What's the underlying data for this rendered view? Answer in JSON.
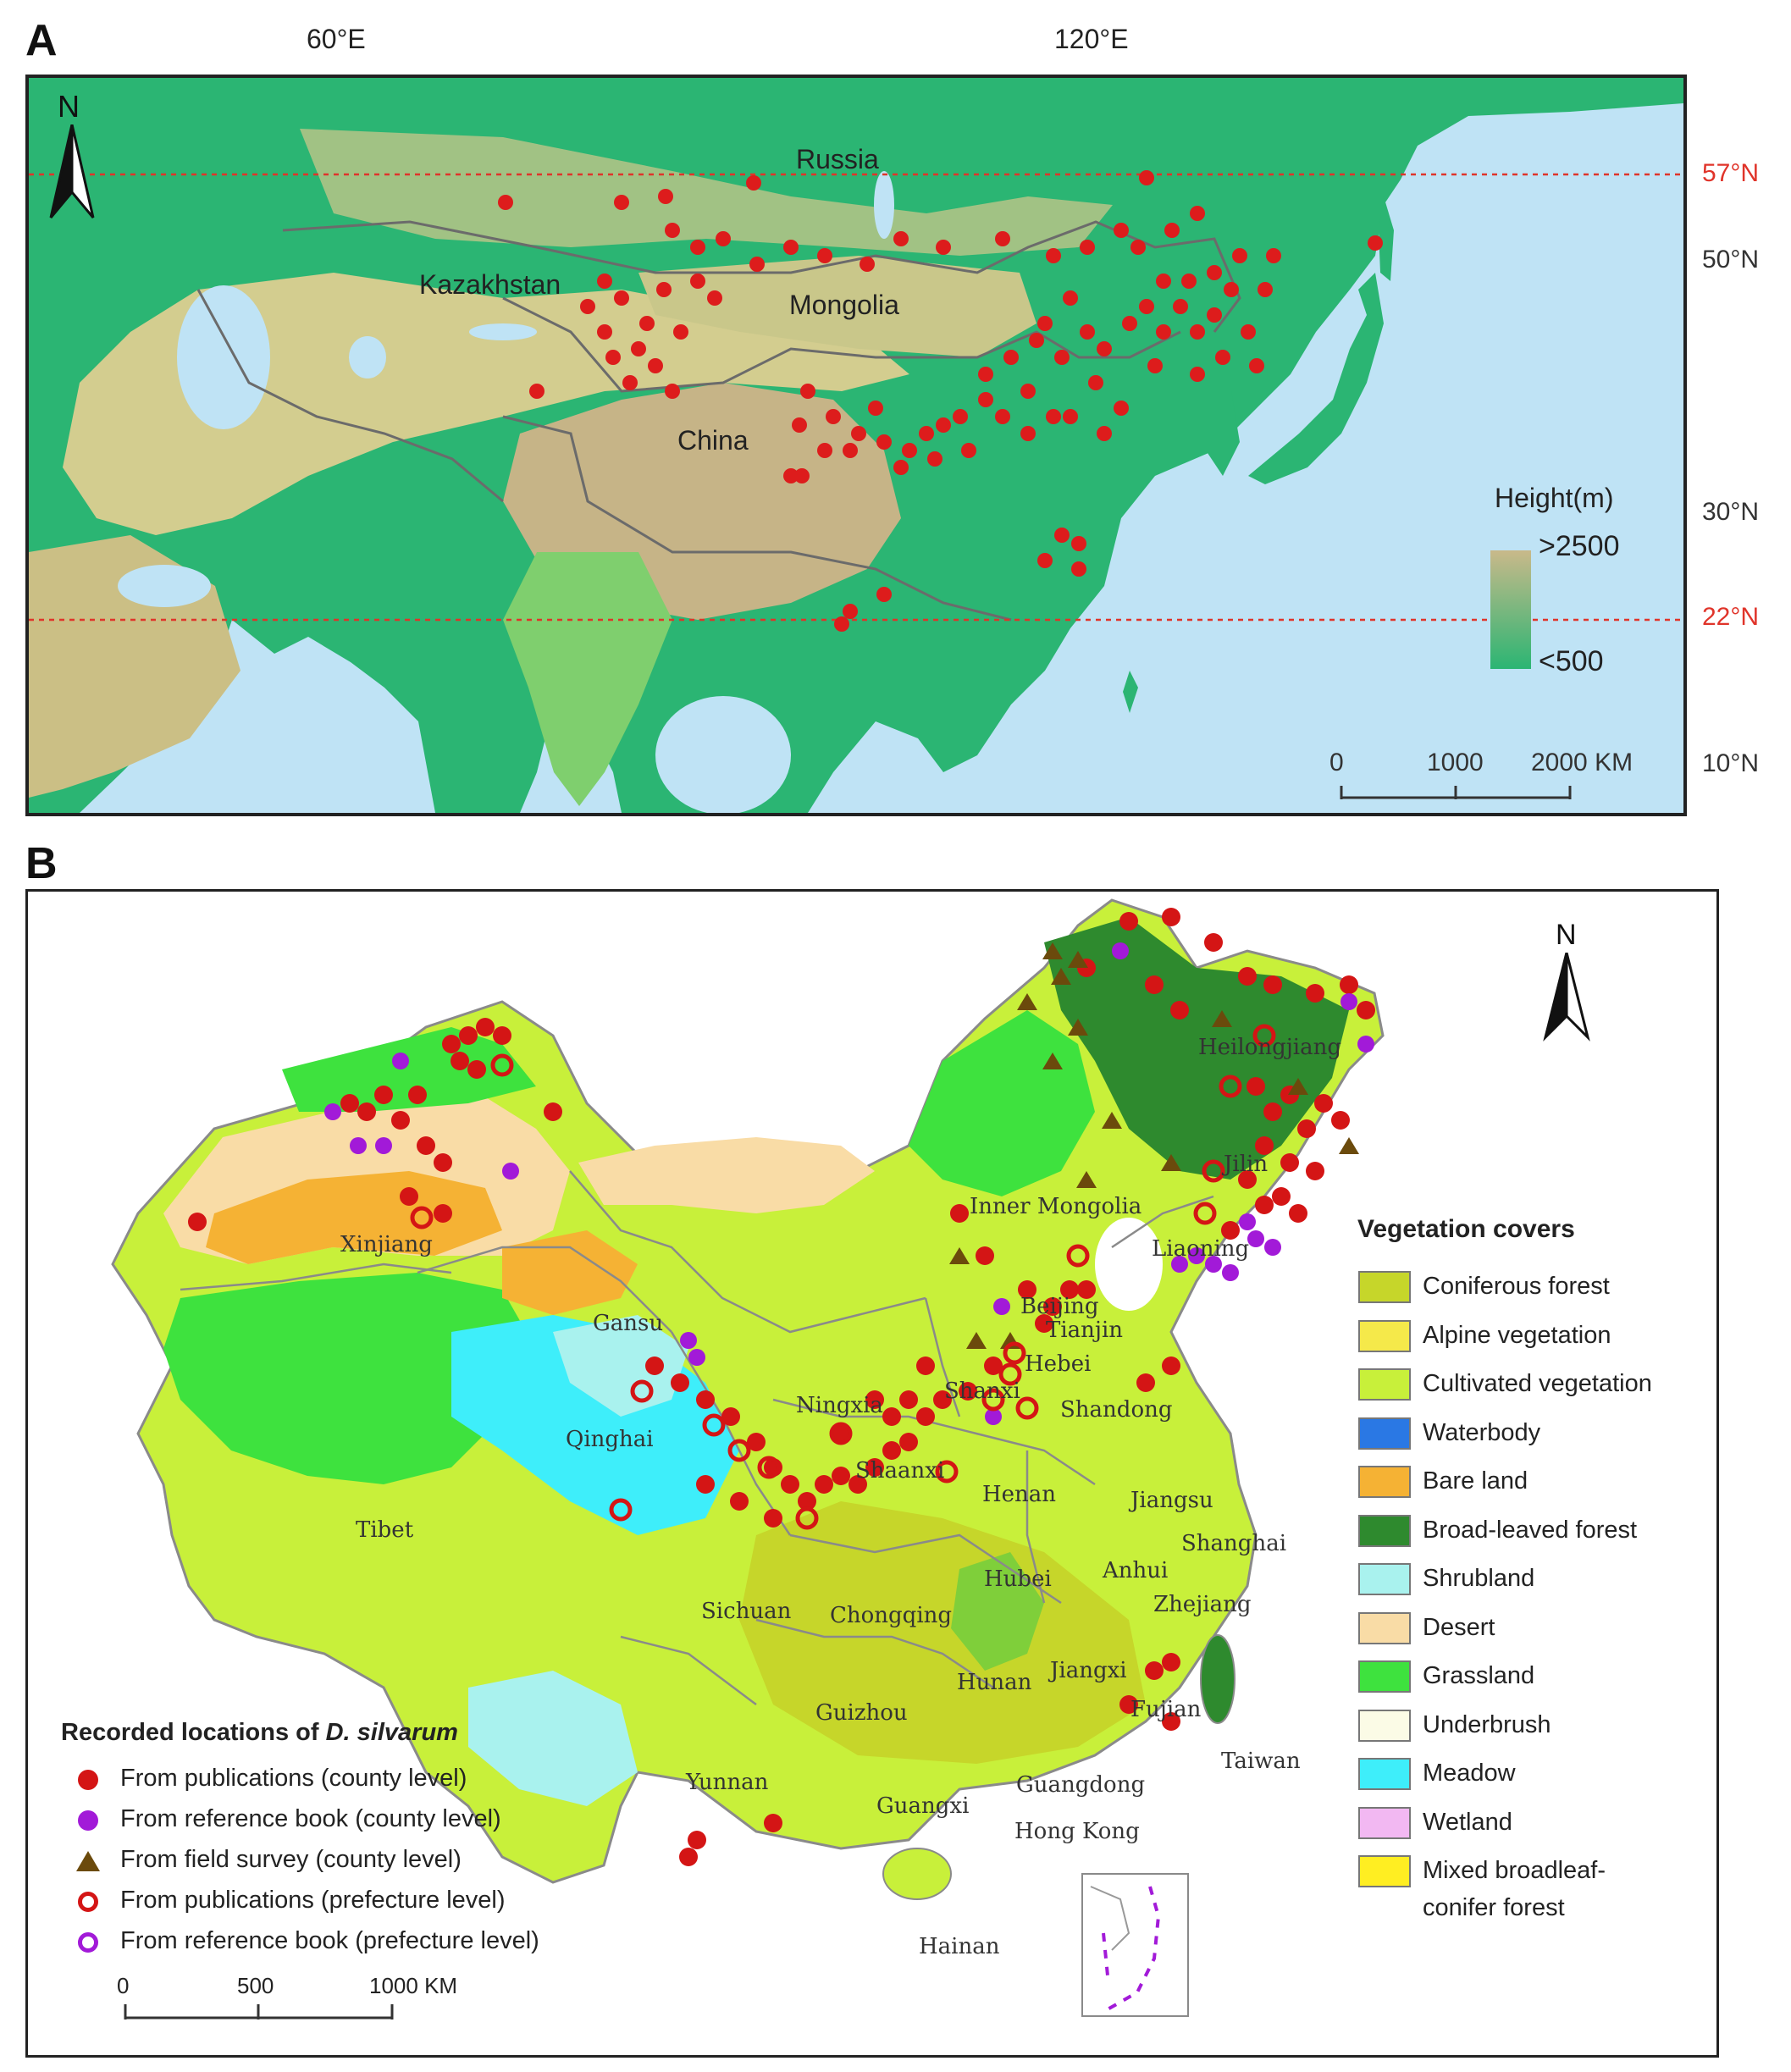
{
  "panel_a": {
    "letter": "A",
    "top_axis": [
      "60°E",
      "120°E"
    ],
    "right_axis": [
      "57°N",
      "50°N",
      "30°N",
      "22°N",
      "10°N"
    ],
    "countries": [
      "Russia",
      "Kazakhstan",
      "Mongolia",
      "China"
    ],
    "north": "N",
    "height_legend": {
      "title": "Height(m)",
      "high": ">2500",
      "low": "<500",
      "high_color": "#c9b98a",
      "low_color": "#2bb573"
    },
    "scale": [
      "0",
      "1000",
      "2000 KM"
    ],
    "colors": {
      "sea": "#bfe3f5",
      "land_low": "#2bb573",
      "land_mid": "#c9c78a",
      "plateau": "#c6b487",
      "border": "#6b6b6b",
      "point": "#dd1c1c",
      "latline": "#e0342a"
    }
  },
  "panel_b": {
    "letter": "B",
    "north": "N",
    "provinces": [
      "Heilongjiang",
      "Jilin",
      "Liaoning",
      "Inner Mongolia",
      "Xinjiang",
      "Beijing",
      "Tianjin",
      "Hebei",
      "Gansu",
      "Ningxia",
      "Shanxi",
      "Shandong",
      "Qinghai",
      "Shaanxi",
      "Henan",
      "Jiangsu",
      "Shanghai",
      "Tibet",
      "Anhui",
      "Hubei",
      "Sichuan",
      "Chongqing",
      "Zhejiang",
      "Jiangxi",
      "Hunan",
      "Guizhou",
      "Fujian",
      "Yunnan",
      "Taiwan",
      "Guangdong",
      "Guangxi",
      "Hong Kong",
      "Hainan"
    ],
    "vegetation_title": "Vegetation covers",
    "vegetation": [
      {
        "label": "Coniferous forest",
        "color": "#c6d62a"
      },
      {
        "label": "Alpine vegetation",
        "color": "#f5e94a"
      },
      {
        "label": "Cultivated vegetation",
        "color": "#c8f03a"
      },
      {
        "label": "Waterbody",
        "color": "#2a78e4"
      },
      {
        "label": "Bare land",
        "color": "#f5b234"
      },
      {
        "label": "Broad-leaved forest",
        "color": "#2e8a2e"
      },
      {
        "label": "Shrubland",
        "color": "#a9f2ee"
      },
      {
        "label": "Desert",
        "color": "#f9dca6"
      },
      {
        "label": "Grassland",
        "color": "#3ee23e"
      },
      {
        "label": "Underbrush",
        "color": "#fbfbe6"
      },
      {
        "label": "Meadow",
        "color": "#3eeefa"
      },
      {
        "label": "Wetland",
        "color": "#f2b8f2"
      },
      {
        "label": "Mixed broadleaf-",
        "color": "#ffee22"
      },
      {
        "label": "conifer forest",
        "color": ""
      }
    ],
    "records_title_prefix": "Recorded locations of ",
    "records_title_species": "D. silvarum",
    "records": [
      {
        "label": "From publications (county level)",
        "symbol": "dot-red"
      },
      {
        "label": "From reference book (county level)",
        "symbol": "dot-purple"
      },
      {
        "label": "From field survey (county level)",
        "symbol": "triangle-brown"
      },
      {
        "label": "From publications (prefecture level)",
        "symbol": "ring-red"
      },
      {
        "label": "From reference book (prefecture level)",
        "symbol": "ring-purple"
      }
    ],
    "scale": [
      "0",
      "500",
      "1000 KM"
    ],
    "colors": {
      "red": "#d41515",
      "purple": "#a21ad8",
      "brown": "#6b4a0c",
      "province_border": "#8a8a8a"
    }
  }
}
